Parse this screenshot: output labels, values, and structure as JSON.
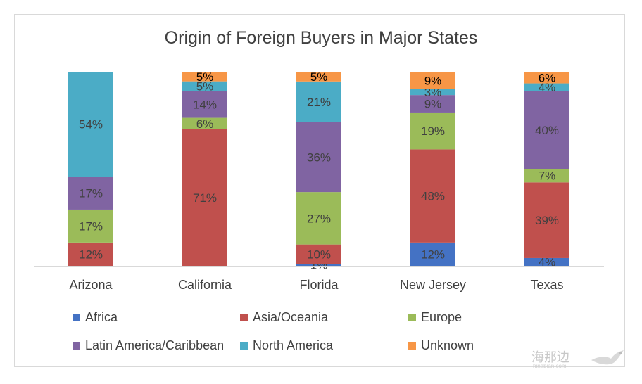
{
  "chart_data": {
    "type": "bar",
    "stacked": true,
    "percent_stacked": true,
    "title": "Origin of Foreign Buyers in Major States",
    "categories": [
      "Arizona",
      "California",
      "Florida",
      "New Jersey",
      "Texas"
    ],
    "ylim": [
      0,
      100
    ],
    "grid": false,
    "legend_position": "bottom",
    "series": [
      {
        "name": "Africa",
        "color": "#4472c4",
        "values": [
          0,
          0,
          1,
          12,
          4
        ],
        "labels": [
          "",
          "",
          "1%",
          "12%",
          "4%"
        ]
      },
      {
        "name": "Asia/Oceania",
        "color": "#c0504d",
        "values": [
          12,
          71,
          10,
          48,
          39
        ],
        "labels": [
          "12%",
          "71%",
          "10%",
          "48%",
          "39%"
        ]
      },
      {
        "name": "Europe",
        "color": "#9bbb59",
        "values": [
          17,
          6,
          27,
          19,
          7
        ],
        "labels": [
          "17%",
          "6%",
          "27%",
          "19%",
          "7%"
        ]
      },
      {
        "name": "Latin America/Caribbean",
        "color": "#8064a2",
        "values": [
          17,
          14,
          36,
          9,
          40
        ],
        "labels": [
          "17%",
          "14%",
          "36%",
          "9%",
          "40%"
        ]
      },
      {
        "name": "North America",
        "color": "#4bacc6",
        "values": [
          54,
          5,
          21,
          3,
          4
        ],
        "labels": [
          "54%",
          "5%",
          "21%",
          "3%",
          "4%"
        ]
      },
      {
        "name": "Unknown",
        "color": "#f79646",
        "values": [
          0,
          5,
          5,
          9,
          6
        ],
        "labels": [
          "",
          "5%",
          "5%",
          "9%",
          "6%"
        ]
      }
    ]
  },
  "watermark": {
    "text": "海那边",
    "subtext": "hinabian.com"
  }
}
